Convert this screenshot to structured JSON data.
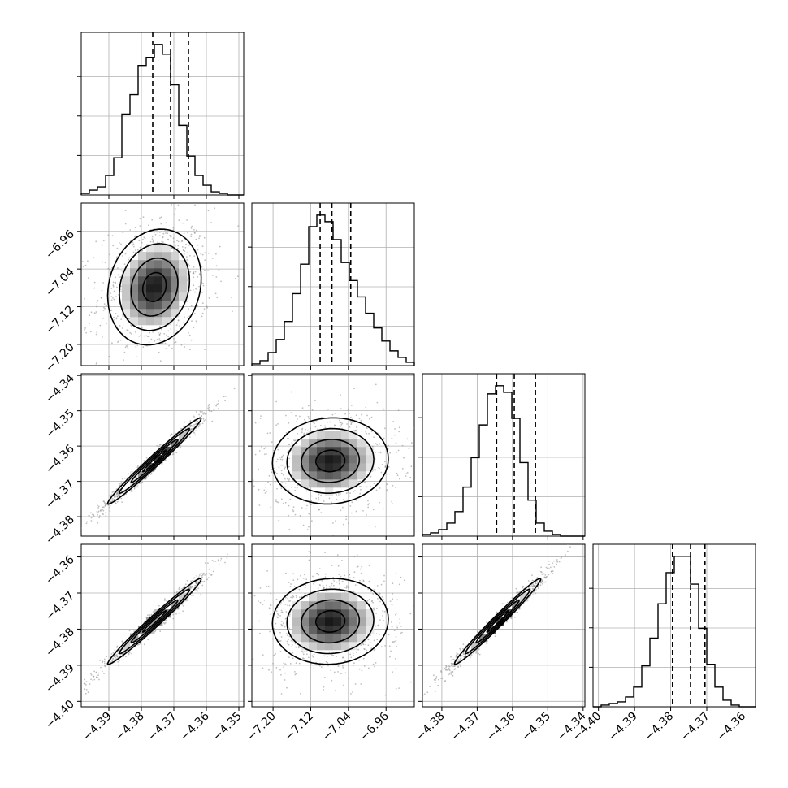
{
  "figure": {
    "type": "corner-plot",
    "colors": {
      "ink": "#000000",
      "grid": "#b0b0b0",
      "scatter": "#8c8c8c",
      "background": "#ffffff"
    }
  },
  "chart_data": {
    "type": "corner",
    "parameters": [
      {
        "index": 0,
        "range": [
          -4.3985,
          -4.3485
        ],
        "ticks": [
          -4.39,
          -4.38,
          -4.37,
          -4.36,
          -4.35
        ],
        "tick_labels": [
          "−4.39",
          "−4.38",
          "−4.37",
          "−4.36",
          "−4.35"
        ],
        "histogram": {
          "counts": [
            0.01,
            0.03,
            0.05,
            0.12,
            0.23,
            0.5,
            0.62,
            0.8,
            0.85,
            0.93,
            0.87,
            0.68,
            0.43,
            0.24,
            0.12,
            0.06,
            0.02,
            0.01,
            0.0,
            0.0
          ],
          "quantiles": [
            -4.3765,
            -4.371,
            -4.3655
          ]
        }
      },
      {
        "index": 1,
        "range": [
          -7.245,
          -6.9
        ],
        "ticks": [
          -7.2,
          -7.12,
          -7.04,
          -6.96
        ],
        "tick_labels": [
          "−7.20",
          "−7.12",
          "−7.04",
          "−6.96"
        ],
        "histogram": {
          "counts": [
            0.01,
            0.03,
            0.08,
            0.16,
            0.27,
            0.44,
            0.62,
            0.85,
            0.92,
            0.88,
            0.77,
            0.63,
            0.52,
            0.42,
            0.32,
            0.23,
            0.15,
            0.09,
            0.05,
            0.02
          ],
          "quantiles": [
            -7.1,
            -7.075,
            -7.035
          ]
        }
      },
      {
        "index": 2,
        "range": [
          -4.3855,
          -4.3395
        ],
        "ticks": [
          -4.38,
          -4.37,
          -4.36,
          -4.35,
          -4.34
        ],
        "tick_labels": [
          "−4.38",
          "−4.37",
          "−4.36",
          "−4.35",
          "−4.34"
        ],
        "histogram": {
          "counts": [
            0.01,
            0.02,
            0.04,
            0.08,
            0.15,
            0.3,
            0.48,
            0.68,
            0.87,
            0.92,
            0.88,
            0.72,
            0.45,
            0.22,
            0.08,
            0.03,
            0.01,
            0.0,
            0.0,
            0.0
          ],
          "quantiles": [
            -4.3645,
            -4.3595,
            -4.3535
          ]
        }
      },
      {
        "index": 3,
        "range": [
          -4.4015,
          -4.3565
        ],
        "ticks": [
          -4.4,
          -4.39,
          -4.38,
          -4.37,
          -4.36
        ],
        "tick_labels": [
          "−4.40",
          "−4.39",
          "−4.38",
          "−4.37",
          "−4.36"
        ],
        "histogram": {
          "counts": [
            0.0,
            0.01,
            0.02,
            0.03,
            0.06,
            0.12,
            0.25,
            0.42,
            0.63,
            0.82,
            0.92,
            0.92,
            0.75,
            0.48,
            0.26,
            0.12,
            0.04,
            0.01,
            0.0,
            0.0
          ],
          "quantiles": [
            -4.3795,
            -4.3745,
            -4.3705
          ]
        }
      }
    ],
    "pairs": [
      {
        "x": 0,
        "y": 1,
        "correlation": 0.15
      },
      {
        "x": 0,
        "y": 2,
        "correlation": 0.985
      },
      {
        "x": 1,
        "y": 2,
        "correlation": 0.05
      },
      {
        "x": 0,
        "y": 3,
        "correlation": 0.985
      },
      {
        "x": 1,
        "y": 3,
        "correlation": 0.05
      },
      {
        "x": 2,
        "y": 3,
        "correlation": 0.985
      }
    ],
    "contour_levels": [
      0.5,
      1.0,
      1.5,
      2.0
    ],
    "grid": true,
    "legend": "none"
  }
}
